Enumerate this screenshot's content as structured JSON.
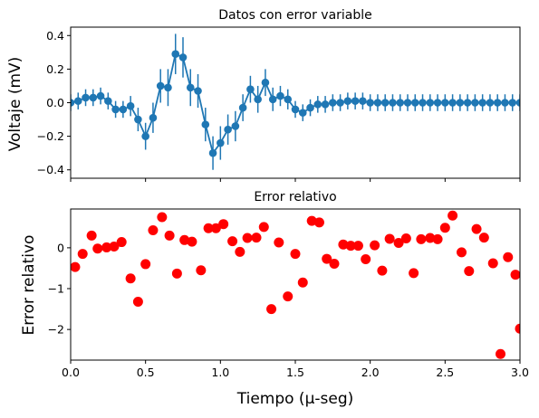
{
  "chart_data": [
    {
      "type": "line",
      "title": "Datos con error variable",
      "xlabel": "",
      "ylabel": "Voltaje (mV)",
      "xlim": [
        0,
        3
      ],
      "ylim": [
        -0.45,
        0.45
      ],
      "grid": false,
      "xticks": [
        0.0,
        0.5,
        1.0,
        1.5,
        2.0,
        2.5,
        3.0
      ],
      "yticks": [
        -0.4,
        -0.2,
        0.0,
        0.2,
        0.4
      ],
      "ytick_labels": [
        "−0.4",
        "−0.2",
        "0.0",
        "0.2",
        "0.4"
      ],
      "color": "#1f77b4",
      "x": [
        0.0,
        0.05,
        0.1,
        0.15,
        0.2,
        0.25,
        0.3,
        0.35,
        0.4,
        0.45,
        0.5,
        0.55,
        0.6,
        0.65,
        0.7,
        0.75,
        0.8,
        0.85,
        0.9,
        0.95,
        1.0,
        1.05,
        1.1,
        1.15,
        1.2,
        1.25,
        1.3,
        1.35,
        1.4,
        1.45,
        1.5,
        1.55,
        1.6,
        1.65,
        1.7,
        1.75,
        1.8,
        1.85,
        1.9,
        1.95,
        2.0,
        2.05,
        2.1,
        2.15,
        2.2,
        2.25,
        2.3,
        2.35,
        2.4,
        2.45,
        2.5,
        2.55,
        2.6,
        2.65,
        2.7,
        2.75,
        2.8,
        2.85,
        2.9,
        2.95,
        3.0
      ],
      "y": [
        0.0,
        0.01,
        0.03,
        0.03,
        0.04,
        0.01,
        -0.04,
        -0.04,
        -0.02,
        -0.1,
        -0.2,
        -0.09,
        0.1,
        0.09,
        0.29,
        0.27,
        0.09,
        0.07,
        -0.13,
        -0.3,
        -0.24,
        -0.16,
        -0.14,
        -0.03,
        0.08,
        0.02,
        0.12,
        0.02,
        0.04,
        0.02,
        -0.04,
        -0.06,
        -0.03,
        -0.01,
        -0.01,
        0.0,
        0.0,
        0.01,
        0.01,
        0.01,
        0.0,
        0.0,
        0.0,
        0.0,
        0.0,
        0.0,
        0.0,
        0.0,
        0.0,
        0.0,
        0.0,
        0.0,
        0.0,
        0.0,
        0.0,
        0.0,
        0.0,
        0.0,
        0.0,
        0.0,
        0.0
      ],
      "yerr": [
        0.05,
        0.05,
        0.05,
        0.05,
        0.05,
        0.05,
        0.05,
        0.05,
        0.06,
        0.07,
        0.08,
        0.09,
        0.1,
        0.11,
        0.12,
        0.12,
        0.11,
        0.1,
        0.1,
        0.1,
        0.1,
        0.09,
        0.09,
        0.08,
        0.08,
        0.08,
        0.08,
        0.07,
        0.06,
        0.06,
        0.05,
        0.05,
        0.05,
        0.05,
        0.05,
        0.05,
        0.05,
        0.05,
        0.05,
        0.05,
        0.05,
        0.05,
        0.05,
        0.05,
        0.05,
        0.05,
        0.05,
        0.05,
        0.05,
        0.05,
        0.05,
        0.05,
        0.05,
        0.05,
        0.05,
        0.05,
        0.05,
        0.05,
        0.05,
        0.05,
        0.05
      ]
    },
    {
      "type": "scatter",
      "title": "Error relativo",
      "xlabel": "Tiempo (μ-seg)",
      "ylabel": "Error relativo",
      "xlim": [
        0,
        3
      ],
      "ylim": [
        -2.75,
        0.95
      ],
      "grid": false,
      "xticks": [
        0.0,
        0.5,
        1.0,
        1.5,
        2.0,
        2.5,
        3.0
      ],
      "xtick_labels": [
        "0.0",
        "0.5",
        "1.0",
        "1.5",
        "2.0",
        "2.5",
        "3.0"
      ],
      "yticks": [
        -2,
        -1,
        0
      ],
      "ytick_labels": [
        "−2",
        "−1",
        "0"
      ],
      "color": "#ff0000",
      "x": [
        0.03,
        0.08,
        0.14,
        0.18,
        0.24,
        0.29,
        0.34,
        0.4,
        0.45,
        0.5,
        0.55,
        0.61,
        0.66,
        0.71,
        0.76,
        0.81,
        0.87,
        0.92,
        0.97,
        1.02,
        1.08,
        1.13,
        1.18,
        1.24,
        1.29,
        1.34,
        1.39,
        1.45,
        1.5,
        1.55,
        1.61,
        1.66,
        1.71,
        1.76,
        1.82,
        1.87,
        1.92,
        1.97,
        2.03,
        2.08,
        2.13,
        2.19,
        2.24,
        2.29,
        2.34,
        2.4,
        2.45,
        2.5,
        2.55,
        2.61,
        2.66,
        2.71,
        2.76,
        2.82,
        2.87,
        2.92,
        2.97,
        3.0
      ],
      "y": [
        -0.47,
        -0.15,
        0.3,
        -0.02,
        0.01,
        0.03,
        0.14,
        -0.75,
        -1.32,
        -0.4,
        0.43,
        0.75,
        0.3,
        -0.63,
        0.19,
        0.15,
        -0.55,
        0.48,
        0.48,
        0.58,
        0.16,
        -0.1,
        0.24,
        0.25,
        0.51,
        -1.5,
        0.13,
        -1.19,
        -0.15,
        -0.85,
        0.66,
        0.62,
        -0.27,
        -0.39,
        0.08,
        0.05,
        0.05,
        -0.28,
        0.06,
        -0.56,
        0.22,
        0.12,
        0.23,
        -0.62,
        0.21,
        0.24,
        0.21,
        0.49,
        0.79,
        -0.11,
        -0.57,
        0.46,
        0.25,
        -0.38,
        -2.6,
        -0.23,
        -0.66,
        -1.98
      ]
    }
  ]
}
